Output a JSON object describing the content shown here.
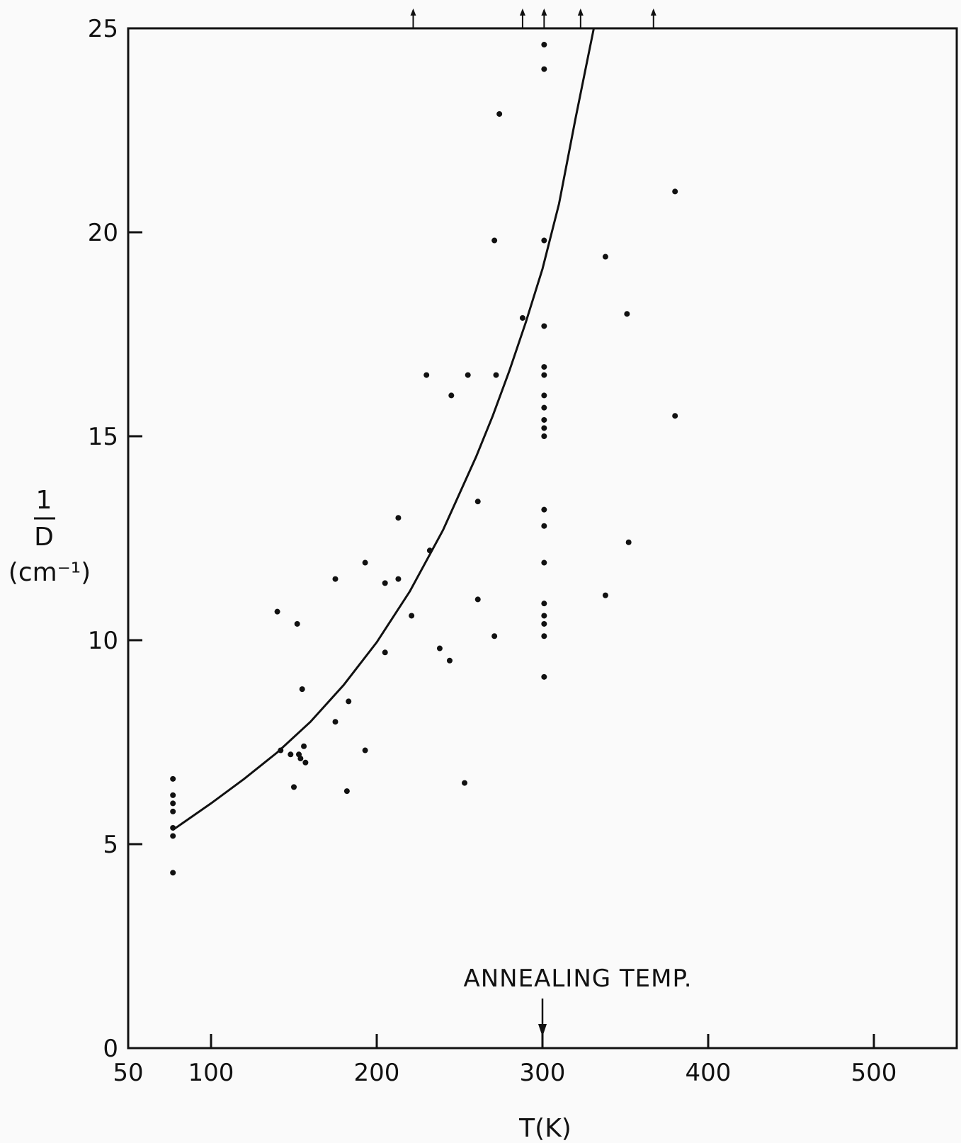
{
  "chart_data": {
    "type": "scatter",
    "xlabel": "T(K)",
    "ylabel_numerator": "1",
    "ylabel_denominator": "D",
    "ylabel_units": "(cm⁻¹)",
    "xlim": [
      50,
      550
    ],
    "ylim": [
      0,
      25
    ],
    "x_ticks": [
      50,
      100,
      200,
      300,
      400,
      500
    ],
    "y_ticks": [
      0,
      5,
      10,
      15,
      20,
      25
    ],
    "grid": false,
    "annotation": {
      "text": "ANNEALING TEMP.",
      "x": 300
    },
    "top_arrows_x": [
      222,
      288,
      301,
      323,
      367
    ],
    "points": [
      {
        "x": 77,
        "y": 6.6
      },
      {
        "x": 77,
        "y": 6.2
      },
      {
        "x": 77,
        "y": 6.0
      },
      {
        "x": 77,
        "y": 5.8
      },
      {
        "x": 77,
        "y": 5.4
      },
      {
        "x": 77,
        "y": 5.2
      },
      {
        "x": 77,
        "y": 4.3
      },
      {
        "x": 140,
        "y": 10.7
      },
      {
        "x": 142,
        "y": 7.3
      },
      {
        "x": 148,
        "y": 7.2
      },
      {
        "x": 150,
        "y": 6.4
      },
      {
        "x": 152,
        "y": 10.4
      },
      {
        "x": 153,
        "y": 7.2
      },
      {
        "x": 154,
        "y": 7.1
      },
      {
        "x": 155,
        "y": 8.8
      },
      {
        "x": 156,
        "y": 7.4
      },
      {
        "x": 157,
        "y": 7.0
      },
      {
        "x": 175,
        "y": 11.5
      },
      {
        "x": 175,
        "y": 8.0
      },
      {
        "x": 182,
        "y": 6.3
      },
      {
        "x": 183,
        "y": 8.5
      },
      {
        "x": 193,
        "y": 11.9
      },
      {
        "x": 193,
        "y": 7.3
      },
      {
        "x": 205,
        "y": 11.4
      },
      {
        "x": 205,
        "y": 9.7
      },
      {
        "x": 213,
        "y": 13.0
      },
      {
        "x": 213,
        "y": 11.5
      },
      {
        "x": 221,
        "y": 10.6
      },
      {
        "x": 230,
        "y": 16.5
      },
      {
        "x": 232,
        "y": 12.2
      },
      {
        "x": 238,
        "y": 9.8
      },
      {
        "x": 244,
        "y": 9.5
      },
      {
        "x": 245,
        "y": 16.0
      },
      {
        "x": 253,
        "y": 6.5
      },
      {
        "x": 255,
        "y": 16.5
      },
      {
        "x": 261,
        "y": 13.4
      },
      {
        "x": 261,
        "y": 11.0
      },
      {
        "x": 271,
        "y": 19.8
      },
      {
        "x": 271,
        "y": 10.1
      },
      {
        "x": 272,
        "y": 16.5
      },
      {
        "x": 274,
        "y": 22.9
      },
      {
        "x": 288,
        "y": 17.9
      },
      {
        "x": 301,
        "y": 24.6
      },
      {
        "x": 301,
        "y": 24.0
      },
      {
        "x": 301,
        "y": 19.8
      },
      {
        "x": 301,
        "y": 17.7
      },
      {
        "x": 301,
        "y": 16.7
      },
      {
        "x": 301,
        "y": 16.5
      },
      {
        "x": 301,
        "y": 16.0
      },
      {
        "x": 301,
        "y": 15.7
      },
      {
        "x": 301,
        "y": 15.4
      },
      {
        "x": 301,
        "y": 15.2
      },
      {
        "x": 301,
        "y": 15.0
      },
      {
        "x": 301,
        "y": 13.2
      },
      {
        "x": 301,
        "y": 12.8
      },
      {
        "x": 301,
        "y": 11.9
      },
      {
        "x": 301,
        "y": 10.9
      },
      {
        "x": 301,
        "y": 10.6
      },
      {
        "x": 301,
        "y": 10.4
      },
      {
        "x": 301,
        "y": 10.1
      },
      {
        "x": 301,
        "y": 9.1
      },
      {
        "x": 338,
        "y": 19.4
      },
      {
        "x": 338,
        "y": 11.1
      },
      {
        "x": 351,
        "y": 18.0
      },
      {
        "x": 352,
        "y": 12.4
      },
      {
        "x": 380,
        "y": 21.0
      },
      {
        "x": 380,
        "y": 15.5
      }
    ],
    "curve": [
      {
        "x": 77,
        "y": 5.35
      },
      {
        "x": 100,
        "y": 6.0
      },
      {
        "x": 120,
        "y": 6.6
      },
      {
        "x": 140,
        "y": 7.25
      },
      {
        "x": 160,
        "y": 8.0
      },
      {
        "x": 180,
        "y": 8.9
      },
      {
        "x": 200,
        "y": 9.95
      },
      {
        "x": 220,
        "y": 11.2
      },
      {
        "x": 240,
        "y": 12.7
      },
      {
        "x": 260,
        "y": 14.5
      },
      {
        "x": 270,
        "y": 15.5
      },
      {
        "x": 280,
        "y": 16.6
      },
      {
        "x": 290,
        "y": 17.8
      },
      {
        "x": 300,
        "y": 19.1
      },
      {
        "x": 310,
        "y": 20.7
      },
      {
        "x": 320,
        "y": 22.8
      },
      {
        "x": 326,
        "y": 24.0
      },
      {
        "x": 331,
        "y": 25.0
      }
    ]
  }
}
